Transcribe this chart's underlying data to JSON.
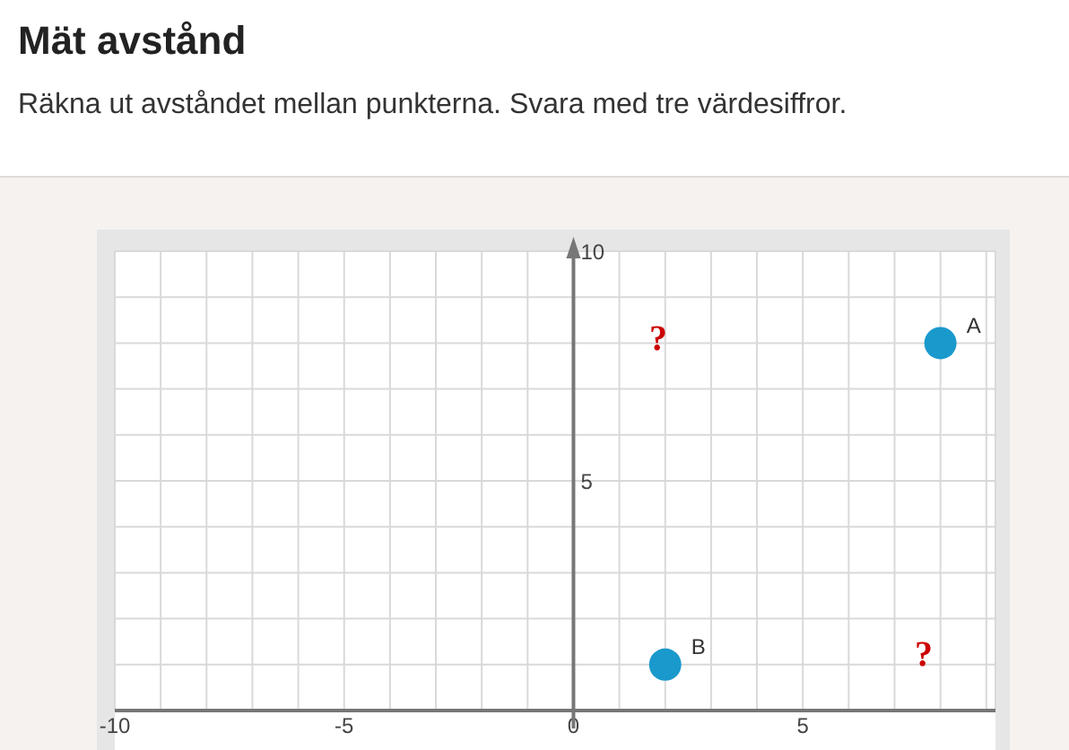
{
  "chart_data": {
    "type": "scatter",
    "title": "Mät avstånd",
    "subtitle": "Räkna ut avståndet mellan punkterna. Svara med tre värdesiffror.",
    "series": [
      {
        "color": "#1a99cc",
        "x": [
          8,
          2
        ],
        "values": [
          8,
          1
        ],
        "value_labels": [
          "A",
          "B"
        ]
      }
    ],
    "xlim": [
      -10,
      9.2
    ],
    "ylim": [
      0,
      10
    ],
    "xticks": [
      -10,
      {
        "value": -9,
        "label": null
      },
      {
        "value": -8,
        "label": null
      },
      {
        "value": -7,
        "label": null
      },
      {
        "value": -6,
        "label": null
      },
      -5,
      {
        "value": -4,
        "label": null
      },
      {
        "value": -3,
        "label": null
      },
      {
        "value": -2,
        "label": null
      },
      {
        "value": -1,
        "label": null
      },
      0,
      {
        "value": 1,
        "label": null
      },
      {
        "value": 2,
        "label": null
      },
      {
        "value": 3,
        "label": null
      },
      {
        "value": 4,
        "label": null
      },
      5,
      {
        "value": 6,
        "label": null
      },
      {
        "value": 7,
        "label": null
      },
      {
        "value": 8,
        "label": null
      },
      {
        "value": 9,
        "label": null
      }
    ],
    "yticks": [
      {
        "value": 0,
        "label": null
      },
      {
        "value": 1,
        "label": null
      },
      {
        "value": 2,
        "label": null
      },
      {
        "value": 3,
        "label": null
      },
      {
        "value": 4,
        "label": null
      },
      5,
      {
        "value": 6,
        "label": null
      },
      {
        "value": 7,
        "label": null
      },
      {
        "value": 8,
        "label": null
      },
      {
        "value": 9,
        "label": null
      },
      10
    ],
    "grid": true,
    "marker": "circle",
    "annotations": [
      "?",
      "?"
    ]
  }
}
